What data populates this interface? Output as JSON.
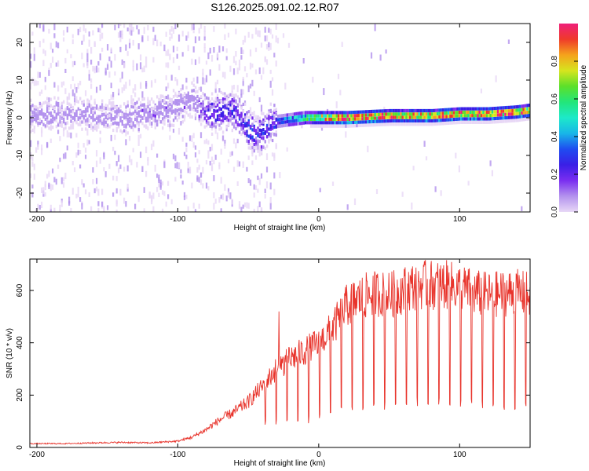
{
  "title": "S126.2025.091.02.12.R07",
  "colors": {
    "snr_line": "#e8342c",
    "colormap": [
      "#e8d8f6",
      "#b493ee",
      "#7a2ef0",
      "#3a1fe6",
      "#1f4cf0",
      "#18b6e8",
      "#1de9c9",
      "#22e67a",
      "#5ce02a",
      "#d6e51e",
      "#f5a31c",
      "#ef3a2a",
      "#ef1f7a"
    ]
  },
  "chart_data": [
    {
      "type": "heatmap",
      "xlabel": "Height of straight line (km)",
      "ylabel": "Frequency (Hz)",
      "xlim": [
        -205,
        150
      ],
      "ylim": [
        -25,
        25
      ],
      "xticks": [
        -200,
        -100,
        0,
        100
      ],
      "yticks": [
        -20,
        -10,
        0,
        10,
        20
      ],
      "colorbar": {
        "label": "Normalized spectral amplitude",
        "range": [
          0,
          1
        ],
        "ticks": [
          "0.0",
          "0.2",
          "0.4",
          "0.6",
          "0.8"
        ]
      },
      "ridge": {
        "x": [
          -205,
          -180,
          -160,
          -140,
          -120,
          -100,
          -90,
          -80,
          -70,
          -60,
          -50,
          -45,
          -40,
          -35,
          -30,
          -20,
          -10,
          0,
          20,
          50,
          80,
          100,
          120,
          140,
          150
        ],
        "freq": [
          0.5,
          1.0,
          0.5,
          0.0,
          1.0,
          3.0,
          5.0,
          1.0,
          1.5,
          2.0,
          -3.0,
          -4.5,
          -4.0,
          -1.5,
          -1.0,
          -0.5,
          0.0,
          0.0,
          0.0,
          0.5,
          0.5,
          1.0,
          1.0,
          1.5,
          2.0
        ],
        "peak_amplitude": [
          0.12,
          0.12,
          0.12,
          0.12,
          0.14,
          0.15,
          0.14,
          0.22,
          0.26,
          0.3,
          0.35,
          0.28,
          0.3,
          0.3,
          0.35,
          0.45,
          0.55,
          0.75,
          0.95,
          0.9,
          0.85,
          0.9,
          0.95,
          0.9,
          0.8
        ]
      }
    },
    {
      "type": "line",
      "xlabel": "Height of straight line (km)",
      "ylabel": "SNR (10 * v/v)",
      "xlim": [
        -205,
        150
      ],
      "ylim": [
        0,
        720
      ],
      "xticks": [
        -200,
        -100,
        0,
        100
      ],
      "yticks": [
        0,
        200,
        400,
        600
      ],
      "series": [
        {
          "x": [
            -205,
            -180,
            -160,
            -140,
            -120,
            -100,
            -90,
            -80,
            -70,
            -60,
            -50,
            -40,
            -30,
            -20,
            -10,
            0,
            10,
            20,
            30,
            40,
            50,
            60,
            70,
            80,
            90,
            100,
            110,
            120,
            130,
            140,
            150
          ],
          "values": [
            15,
            15,
            18,
            20,
            18,
            25,
            40,
            70,
            110,
            140,
            180,
            240,
            310,
            350,
            380,
            410,
            470,
            560,
            590,
            610,
            600,
            620,
            640,
            640,
            640,
            630,
            610,
            600,
            605,
            610,
            600
          ],
          "dips_floor": [
            10,
            10,
            10,
            10,
            10,
            10,
            15,
            20,
            30,
            40,
            50,
            60,
            80,
            90,
            90,
            100,
            110,
            120,
            130,
            140,
            145,
            150,
            155,
            160,
            160,
            155,
            150,
            145,
            145,
            140,
            140
          ]
        }
      ]
    }
  ]
}
